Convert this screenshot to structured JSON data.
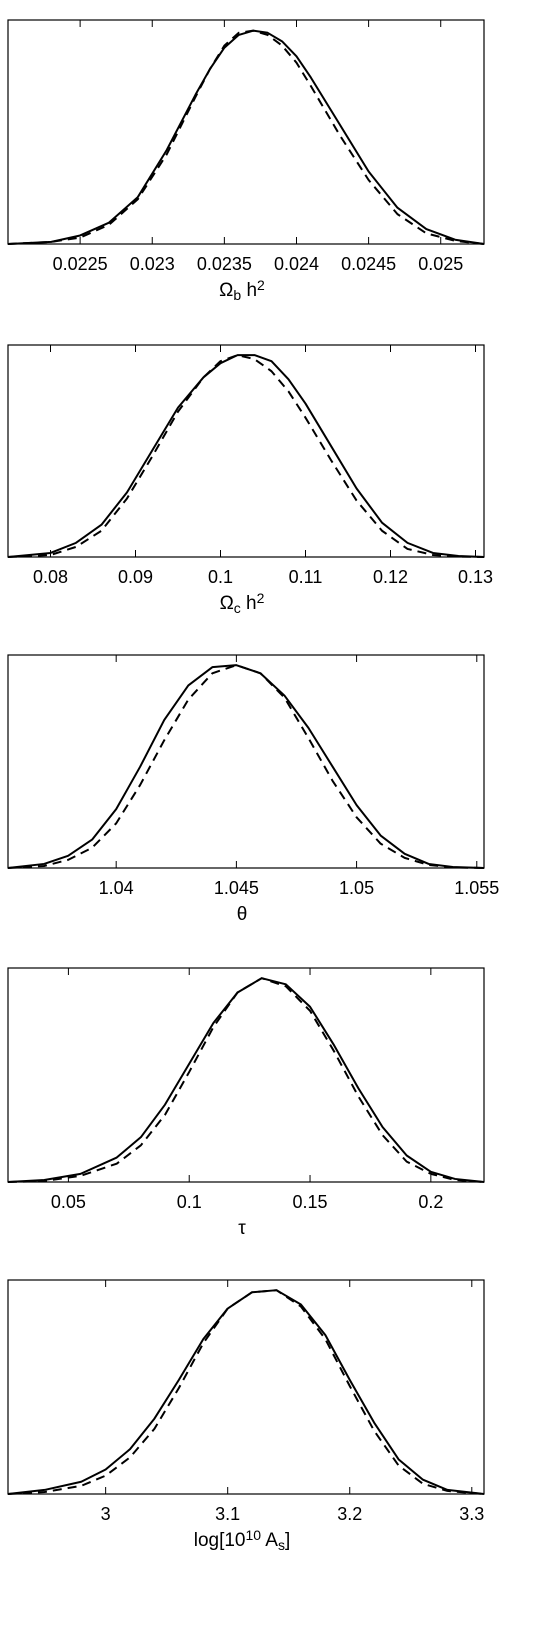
{
  "chart_data": [
    {
      "type": "line",
      "xlabel": "Ω_b h^2",
      "xlabel_parts": [
        {
          "text": "Ω",
          "style": "normal"
        },
        {
          "text": "b",
          "style": "sub"
        },
        {
          "text": " h",
          "style": "normal"
        },
        {
          "text": "2",
          "style": "sup"
        }
      ],
      "xlim": [
        0.022,
        0.0253
      ],
      "ylim": [
        0,
        1.05
      ],
      "xticks": [
        0.0225,
        0.023,
        0.0235,
        0.024,
        0.0245,
        0.025
      ],
      "xtick_labels": [
        "0.0225",
        "0.023",
        "0.0235",
        "0.024",
        "0.0245",
        "0.025"
      ],
      "series": [
        {
          "style": "solid",
          "color": "#000000",
          "x": [
            0.022,
            0.0223,
            0.0225,
            0.0227,
            0.0229,
            0.0231,
            0.0233,
            0.0234,
            0.0235,
            0.0236,
            0.0237,
            0.0238,
            0.0239,
            0.024,
            0.0241,
            0.0243,
            0.0245,
            0.0247,
            0.0249,
            0.0251,
            0.0253
          ],
          "y": [
            0.0,
            0.01,
            0.04,
            0.1,
            0.22,
            0.44,
            0.7,
            0.82,
            0.92,
            0.98,
            1.0,
            0.99,
            0.95,
            0.88,
            0.78,
            0.56,
            0.34,
            0.17,
            0.07,
            0.02,
            0.0
          ]
        },
        {
          "style": "dashed",
          "color": "#000000",
          "x": [
            0.022,
            0.0223,
            0.0225,
            0.0227,
            0.0229,
            0.0231,
            0.0233,
            0.0234,
            0.0235,
            0.0236,
            0.0237,
            0.0238,
            0.0239,
            0.024,
            0.0241,
            0.0243,
            0.0245,
            0.0247,
            0.0249,
            0.0251,
            0.0253
          ],
          "y": [
            0.0,
            0.01,
            0.03,
            0.09,
            0.21,
            0.42,
            0.69,
            0.82,
            0.93,
            0.99,
            1.0,
            0.98,
            0.93,
            0.85,
            0.74,
            0.51,
            0.3,
            0.14,
            0.05,
            0.015,
            0.0
          ]
        }
      ]
    },
    {
      "type": "line",
      "xlabel": "Ω_c h^2",
      "xlabel_parts": [
        {
          "text": "Ω",
          "style": "normal"
        },
        {
          "text": "c",
          "style": "sub"
        },
        {
          "text": " h",
          "style": "normal"
        },
        {
          "text": "2",
          "style": "sup"
        }
      ],
      "xlim": [
        0.075,
        0.131
      ],
      "ylim": [
        0,
        1.05
      ],
      "xticks": [
        0.08,
        0.09,
        0.1,
        0.11,
        0.12,
        0.13
      ],
      "xtick_labels": [
        "0.08",
        "0.09",
        "0.1",
        "0.11",
        "0.12",
        "0.13"
      ],
      "series": [
        {
          "style": "solid",
          "color": "#000000",
          "x": [
            0.075,
            0.08,
            0.083,
            0.086,
            0.089,
            0.092,
            0.095,
            0.098,
            0.1,
            0.102,
            0.104,
            0.106,
            0.108,
            0.11,
            0.113,
            0.116,
            0.119,
            0.122,
            0.125,
            0.128,
            0.131
          ],
          "y": [
            0.0,
            0.02,
            0.07,
            0.16,
            0.32,
            0.53,
            0.74,
            0.89,
            0.96,
            1.0,
            1.0,
            0.97,
            0.88,
            0.76,
            0.55,
            0.34,
            0.17,
            0.07,
            0.02,
            0.005,
            0.0
          ]
        },
        {
          "style": "dashed",
          "color": "#000000",
          "x": [
            0.075,
            0.08,
            0.083,
            0.086,
            0.089,
            0.092,
            0.095,
            0.098,
            0.1,
            0.102,
            0.104,
            0.106,
            0.108,
            0.11,
            0.113,
            0.116,
            0.119,
            0.122,
            0.125,
            0.128,
            0.131
          ],
          "y": [
            0.0,
            0.01,
            0.05,
            0.13,
            0.29,
            0.5,
            0.72,
            0.89,
            0.97,
            1.0,
            0.98,
            0.92,
            0.82,
            0.69,
            0.48,
            0.28,
            0.13,
            0.04,
            0.01,
            0.002,
            0.0
          ]
        }
      ]
    },
    {
      "type": "line",
      "xlabel": "θ",
      "xlabel_parts": [
        {
          "text": "θ",
          "style": "normal"
        }
      ],
      "xlim": [
        1.0355,
        1.0553
      ],
      "ylim": [
        0,
        1.05
      ],
      "xticks": [
        1.04,
        1.045,
        1.05,
        1.055
      ],
      "xtick_labels": [
        "1.04",
        "1.045",
        "1.05",
        "1.055"
      ],
      "series": [
        {
          "style": "solid",
          "color": "#000000",
          "x": [
            1.0355,
            1.037,
            1.038,
            1.039,
            1.04,
            1.041,
            1.042,
            1.043,
            1.044,
            1.045,
            1.046,
            1.047,
            1.048,
            1.049,
            1.05,
            1.051,
            1.052,
            1.053,
            1.054,
            1.0553
          ],
          "y": [
            0.0,
            0.02,
            0.06,
            0.14,
            0.29,
            0.5,
            0.73,
            0.9,
            0.99,
            1.0,
            0.96,
            0.85,
            0.69,
            0.5,
            0.31,
            0.16,
            0.07,
            0.02,
            0.005,
            0.0
          ]
        },
        {
          "style": "dashed",
          "color": "#000000",
          "x": [
            1.0355,
            1.037,
            1.038,
            1.039,
            1.04,
            1.041,
            1.042,
            1.043,
            1.044,
            1.045,
            1.046,
            1.047,
            1.048,
            1.049,
            1.05,
            1.051,
            1.052,
            1.053,
            1.054,
            1.0553
          ],
          "y": [
            0.0,
            0.01,
            0.04,
            0.1,
            0.22,
            0.41,
            0.63,
            0.83,
            0.96,
            1.0,
            0.96,
            0.84,
            0.64,
            0.43,
            0.25,
            0.12,
            0.05,
            0.015,
            0.003,
            0.0
          ]
        }
      ]
    },
    {
      "type": "line",
      "xlabel": "τ",
      "xlabel_parts": [
        {
          "text": "τ",
          "style": "normal"
        }
      ],
      "xlim": [
        0.025,
        0.222
      ],
      "ylim": [
        0,
        1.05
      ],
      "xticks": [
        0.05,
        0.1,
        0.15,
        0.2
      ],
      "xtick_labels": [
        "0.05",
        "0.1",
        "0.15",
        "0.2"
      ],
      "series": [
        {
          "style": "solid",
          "color": "#000000",
          "x": [
            0.025,
            0.04,
            0.055,
            0.07,
            0.08,
            0.09,
            0.1,
            0.11,
            0.12,
            0.13,
            0.14,
            0.15,
            0.16,
            0.17,
            0.18,
            0.19,
            0.2,
            0.21,
            0.222
          ],
          "y": [
            0.0,
            0.01,
            0.04,
            0.12,
            0.22,
            0.38,
            0.58,
            0.78,
            0.93,
            1.0,
            0.97,
            0.86,
            0.67,
            0.46,
            0.27,
            0.13,
            0.05,
            0.015,
            0.0
          ]
        },
        {
          "style": "dashed",
          "color": "#000000",
          "x": [
            0.025,
            0.04,
            0.055,
            0.07,
            0.08,
            0.09,
            0.1,
            0.11,
            0.12,
            0.13,
            0.14,
            0.15,
            0.16,
            0.17,
            0.18,
            0.19,
            0.2,
            0.21,
            0.222
          ],
          "y": [
            0.0,
            0.005,
            0.03,
            0.09,
            0.18,
            0.33,
            0.54,
            0.76,
            0.93,
            1.0,
            0.96,
            0.84,
            0.64,
            0.42,
            0.23,
            0.1,
            0.04,
            0.01,
            0.0
          ]
        }
      ]
    },
    {
      "type": "line",
      "xlabel": "log[10^10 A_s]",
      "xlabel_parts": [
        {
          "text": "log[10",
          "style": "normal"
        },
        {
          "text": "10",
          "style": "sup"
        },
        {
          "text": " A",
          "style": "normal"
        },
        {
          "text": "s",
          "style": "sub"
        },
        {
          "text": "]",
          "style": "normal"
        }
      ],
      "xlim": [
        2.92,
        3.31
      ],
      "ylim": [
        0,
        1.05
      ],
      "xticks": [
        3.0,
        3.1,
        3.2,
        3.3
      ],
      "xtick_labels": [
        "3",
        "3.1",
        "3.2",
        "3.3"
      ],
      "series": [
        {
          "style": "solid",
          "color": "#000000",
          "x": [
            2.92,
            2.95,
            2.98,
            3.0,
            3.02,
            3.04,
            3.06,
            3.08,
            3.1,
            3.12,
            3.14,
            3.16,
            3.18,
            3.2,
            3.22,
            3.24,
            3.26,
            3.28,
            3.31
          ],
          "y": [
            0.0,
            0.02,
            0.06,
            0.12,
            0.22,
            0.37,
            0.56,
            0.76,
            0.91,
            0.99,
            1.0,
            0.93,
            0.78,
            0.56,
            0.35,
            0.17,
            0.07,
            0.02,
            0.0
          ]
        },
        {
          "style": "dashed",
          "color": "#000000",
          "x": [
            2.92,
            2.95,
            2.98,
            3.0,
            3.02,
            3.04,
            3.06,
            3.08,
            3.1,
            3.12,
            3.14,
            3.16,
            3.18,
            3.2,
            3.22,
            3.24,
            3.26,
            3.28,
            3.31
          ],
          "y": [
            0.0,
            0.01,
            0.04,
            0.09,
            0.18,
            0.32,
            0.52,
            0.74,
            0.91,
            0.99,
            1.0,
            0.92,
            0.76,
            0.53,
            0.31,
            0.14,
            0.05,
            0.015,
            0.0
          ]
        }
      ]
    }
  ]
}
